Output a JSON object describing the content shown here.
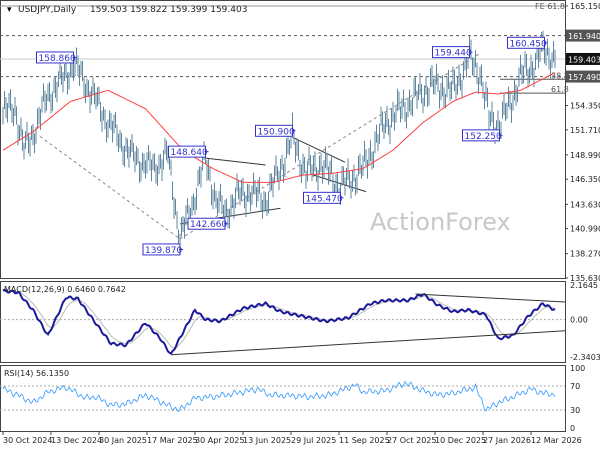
{
  "header": {
    "symbol": "USDJPY,Daily",
    "ohlc": "159.503 159.822 159.399 159.403"
  },
  "watermark": "ActionForex",
  "chart_data": [
    {
      "type": "line",
      "title": "USDJPY,Daily",
      "ylim": [
        135.63,
        165.15
      ],
      "y_ticks": [
        "165.150",
        "154.350",
        "151.710",
        "148.990",
        "146.350",
        "143.630",
        "140.990",
        "138.270",
        "135.630"
      ],
      "x_tick_labels": [
        "30 Oct 2024",
        "13 Dec 2024",
        "30 Jan 2025",
        "17 Mar 2025",
        "30 Apr 2025",
        "13 Jun 2025",
        "29 Jul 2025",
        "11 Sep 2025",
        "27 Oct 2025",
        "10 Dec 2025",
        "27 Jan 2026",
        "12 Mar 2026"
      ],
      "x_tick_index": [
        0,
        32,
        64,
        96,
        128,
        160,
        192,
        224,
        256,
        288,
        320,
        352
      ],
      "price_series": {
        "name": "USDJPY",
        "index": [
          0,
          8,
          14,
          22,
          30,
          40,
          47,
          58,
          70,
          85,
          100,
          110,
          118,
          126,
          135,
          142,
          148,
          156,
          165,
          175,
          185,
          193,
          202,
          212,
          225,
          240,
          255,
          270,
          285,
          300,
          311,
          318,
          324,
          331,
          338,
          345,
          352,
          361,
          368
        ],
        "close": [
          153.5,
          154.2,
          149.5,
          152.0,
          155.5,
          157.2,
          158.86,
          156.0,
          152.5,
          149.0,
          147.5,
          149.0,
          139.87,
          143.5,
          148.64,
          144.0,
          142.66,
          144.5,
          145.0,
          144.0,
          147.5,
          150.9,
          147.0,
          148.0,
          145.47,
          147.5,
          152.5,
          154.5,
          156.5,
          156.0,
          159.44,
          158.0,
          153.0,
          152.25,
          154.5,
          157.5,
          158.5,
          160.45,
          159.403
        ]
      },
      "ma_series": {
        "name": "MA",
        "color": "#ff4040",
        "index": [
          0,
          20,
          45,
          70,
          95,
          120,
          140,
          160,
          180,
          200,
          220,
          240,
          260,
          280,
          300,
          315,
          330,
          345,
          368
        ],
        "value": [
          149.5,
          151.5,
          154.8,
          156.0,
          154.0,
          149.5,
          147.5,
          146.0,
          146.0,
          146.8,
          147.0,
          147.5,
          149.5,
          152.5,
          154.8,
          155.8,
          155.6,
          156.0,
          157.9
        ]
      },
      "levels": [
        {
          "label": "161.940",
          "value": 161.94,
          "style": "dashed"
        },
        {
          "label": "157.490",
          "value": 157.49,
          "style": "dashed"
        },
        {
          "label": "159.403",
          "value": 159.403,
          "style": "current"
        }
      ],
      "fib_labels": [
        {
          "label": "FE 61.8",
          "value": 165.0
        },
        {
          "label": "38.2",
          "value": 157.2
        },
        {
          "label": "61.8",
          "value": 155.7
        }
      ],
      "annotations": [
        {
          "label": "158.860",
          "index": 47,
          "value": 158.86
        },
        {
          "label": "139.870",
          "index": 118,
          "value": 139.87
        },
        {
          "label": "148.640",
          "index": 135,
          "value": 148.64
        },
        {
          "label": "142.660",
          "index": 148,
          "value": 142.66
        },
        {
          "label": "150.900",
          "index": 193,
          "value": 150.9
        },
        {
          "label": "145.470",
          "index": 225,
          "value": 145.47
        },
        {
          "label": "159.440",
          "index": 311,
          "value": 159.44
        },
        {
          "label": "152.250",
          "index": 331,
          "value": 152.25
        },
        {
          "label": "160.450",
          "index": 361,
          "value": 160.45
        }
      ]
    },
    {
      "type": "line",
      "title": "MACD(12,26,9) 0.6460 0.7642",
      "ylim": [
        -2.3403,
        2.1645
      ],
      "y_ticks": [
        "2.1645",
        "0.00",
        "-2.3403"
      ],
      "macd": {
        "index": [
          0,
          10,
          20,
          30,
          42,
          50,
          60,
          72,
          82,
          95,
          105,
          112,
          120,
          128,
          135,
          145,
          160,
          175,
          185,
          200,
          215,
          230,
          245,
          255,
          270,
          280,
          290,
          300,
          310,
          322,
          330,
          340,
          350,
          360,
          368
        ],
        "value": [
          1.8,
          1.7,
          0.6,
          -1.0,
          1.4,
          1.3,
          0.0,
          -1.5,
          -1.6,
          -0.2,
          -1.2,
          -2.2,
          -0.8,
          0.6,
          0.0,
          -0.1,
          0.7,
          1.0,
          0.5,
          0.2,
          -0.1,
          0.1,
          1.0,
          1.2,
          1.2,
          1.6,
          0.9,
          0.5,
          0.6,
          0.3,
          -1.2,
          -1.0,
          0.2,
          1.0,
          0.6
        ]
      },
      "signal_value": 0.7642
    },
    {
      "type": "line",
      "title": "RSI(14) 56.1350",
      "ylim": [
        0,
        100
      ],
      "y_ticks": [
        "100",
        "70",
        "30",
        "0"
      ],
      "rsi": {
        "index": [
          0,
          10,
          20,
          30,
          42,
          55,
          62,
          72,
          82,
          95,
          105,
          112,
          118,
          128,
          140,
          155,
          170,
          178,
          190,
          205,
          218,
          235,
          240,
          255,
          268,
          280,
          290,
          300,
          315,
          322,
          330,
          340,
          352,
          360,
          368
        ],
        "value": [
          65,
          55,
          42,
          60,
          68,
          50,
          52,
          38,
          40,
          55,
          44,
          35,
          30,
          50,
          52,
          58,
          65,
          55,
          54,
          52,
          55,
          72,
          60,
          62,
          75,
          62,
          55,
          58,
          68,
          30,
          42,
          52,
          65,
          58,
          56
        ]
      }
    }
  ]
}
